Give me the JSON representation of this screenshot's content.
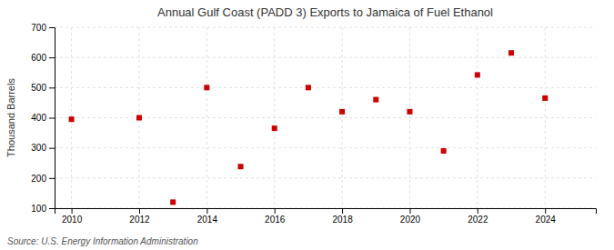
{
  "chart_data": {
    "type": "scatter",
    "title": "Annual Gulf Coast (PADD 3) Exports to Jamaica of Fuel Ethanol",
    "ylabel": "Thousand Barrels",
    "source": "Source: U.S. Energy Information Administration",
    "x": [
      2010,
      2012,
      2013,
      2014,
      2015,
      2016,
      2017,
      2018,
      2019,
      2020,
      2021,
      2022,
      2023,
      2024
    ],
    "values": [
      395,
      400,
      120,
      500,
      238,
      365,
      500,
      420,
      460,
      420,
      290,
      542,
      615,
      465
    ],
    "color": "#cc0000",
    "marker": "square",
    "grid": true,
    "xlim": [
      2009.5,
      2025.5
    ],
    "ylim": [
      100,
      700
    ],
    "xticks": [
      2010,
      2012,
      2014,
      2016,
      2018,
      2020,
      2022,
      2024
    ],
    "yticks": [
      100,
      200,
      300,
      400,
      500,
      600,
      700
    ]
  }
}
